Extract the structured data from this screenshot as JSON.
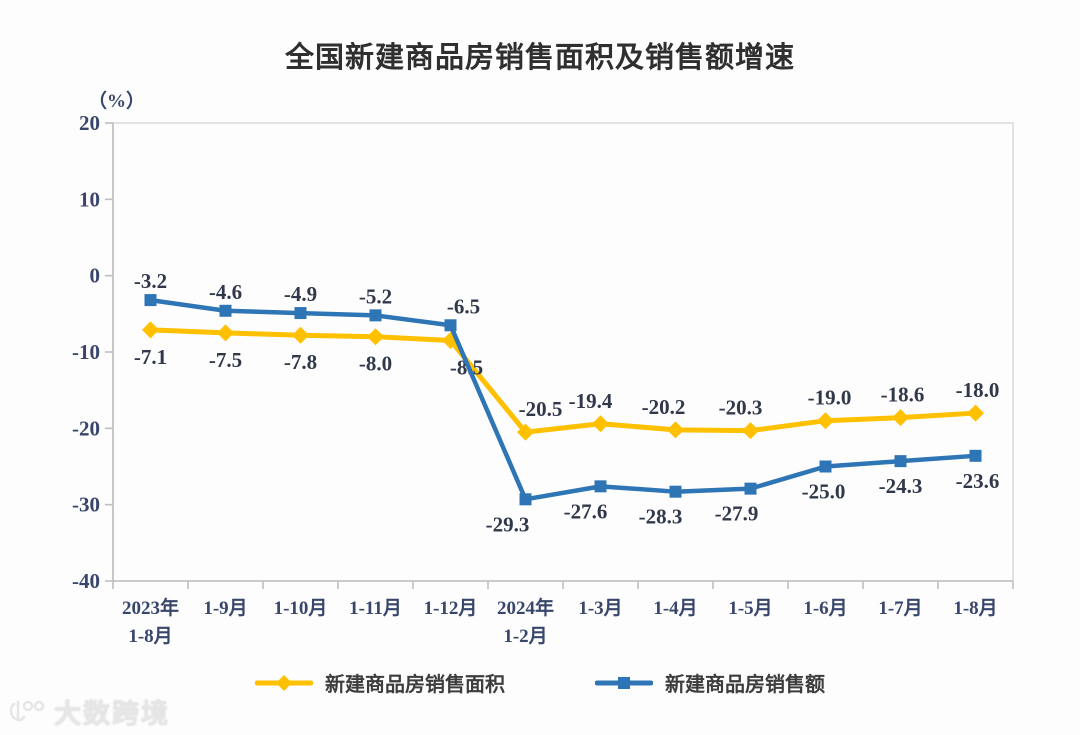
{
  "chart_data": {
    "type": "line",
    "title": "全国新建商品房销售面积及销售额增速",
    "unit_label": "（%）",
    "categories": [
      "2023年\n1-8月",
      "1-9月",
      "1-10月",
      "1-11月",
      "1-12月",
      "2024年\n1-2月",
      "1-3月",
      "1-4月",
      "1-5月",
      "1-6月",
      "1-7月",
      "1-8月"
    ],
    "series": [
      {
        "name": "新建商品房销售面积",
        "color": "#FFC000",
        "marker": "diamond",
        "values": [
          -7.1,
          -7.5,
          -7.8,
          -8.0,
          -8.5,
          -20.5,
          -19.4,
          -20.2,
          -20.3,
          -19.0,
          -18.6,
          -18.0
        ]
      },
      {
        "name": "新建商品房销售额",
        "color": "#2E75B6",
        "marker": "square",
        "values": [
          -3.2,
          -4.6,
          -4.9,
          -5.2,
          -6.5,
          -29.3,
          -27.6,
          -28.3,
          -27.9,
          -25.0,
          -24.3,
          -23.6
        ]
      }
    ],
    "ylim": [
      -40,
      20
    ],
    "ytick_step": 10,
    "yticks": [
      "20",
      "10",
      "0",
      "-10",
      "-20",
      "-30",
      "-40"
    ],
    "grid": false,
    "legend_position": "bottom",
    "axis_color": "#BFBFBF",
    "border_color": "#D9D9D9"
  },
  "watermark": {
    "text": "大数跨境"
  }
}
